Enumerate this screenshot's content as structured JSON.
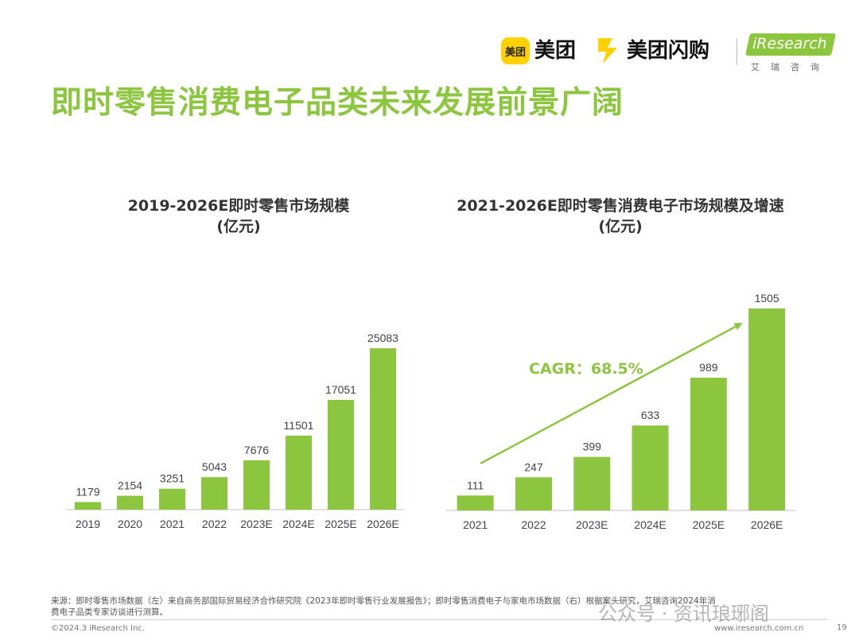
{
  "header": {
    "meituan_icon_text": "美团",
    "meituan_text": "美团",
    "shangou_text": "美团闪购",
    "iresearch_text": "iResearch",
    "iresearch_sub": "艾瑞咨询"
  },
  "title": "即时零售消费电子品类未来发展前景广阔",
  "colors": {
    "accent": "#8cc63f",
    "bar": "#8cc63f",
    "axis": "#bfbfbf"
  },
  "chart_data": [
    {
      "type": "bar",
      "title": "2019-2026E即时零售市场规模",
      "subtitle": "(亿元)",
      "categories": [
        "2019",
        "2020",
        "2021",
        "2022",
        "2023E",
        "2024E",
        "2025E",
        "2026E"
      ],
      "values": [
        1179,
        2154,
        3251,
        5043,
        7676,
        11501,
        17051,
        25083
      ],
      "ylim": [
        0,
        25083
      ],
      "grid": false
    },
    {
      "type": "bar",
      "title": "2021-2026E即时零售消费电子市场规模及增速",
      "subtitle": "(亿元)",
      "categories": [
        "2021",
        "2022",
        "2023E",
        "2024E",
        "2025E",
        "2026E"
      ],
      "values": [
        111,
        247,
        399,
        633,
        989,
        1505
      ],
      "ylim": [
        0,
        1505
      ],
      "grid": false,
      "annotation": "CAGR：68.5%"
    }
  ],
  "footer": {
    "source_line1": "来源：即时零售市场数据（左）来自商务部国际贸易经济合作研究院《2023年即时零售行业发展报告》；即时零售消费电子与家电市场数据（右）根据案头研究，艾瑞咨询2024年消",
    "source_line2": "费电子品类专家访谈进行测算。",
    "copyright": "©2024.3 iResearch Inc.",
    "website": "www.iresearch.com.cn",
    "page": "19",
    "watermark": "公众号 · 资讯琅琊阁"
  }
}
